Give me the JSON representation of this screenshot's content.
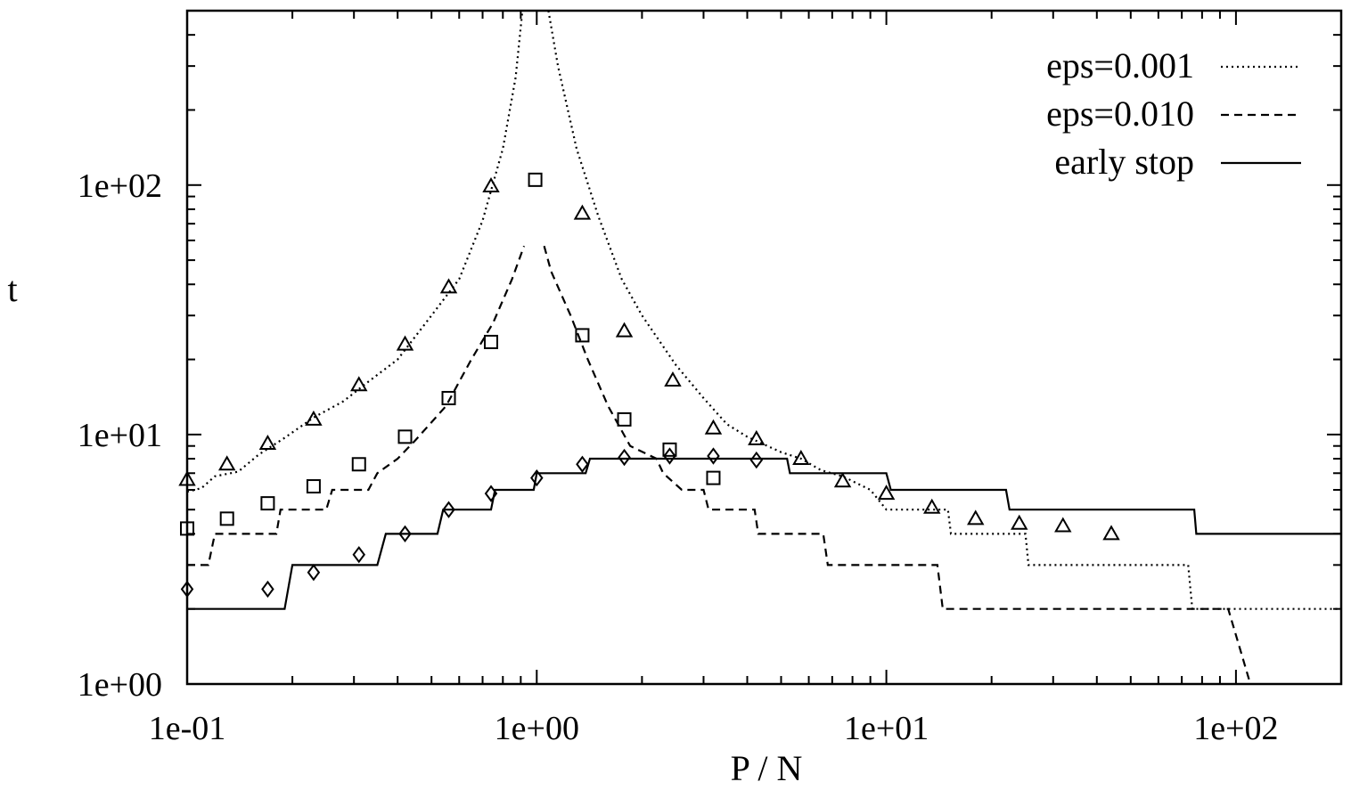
{
  "chart_data": {
    "type": "line",
    "title": "",
    "xlabel": "P / N",
    "ylabel": "t",
    "x_scale": "log",
    "y_scale": "log",
    "xlim": [
      0.1,
      200
    ],
    "ylim": [
      1,
      500
    ],
    "x_ticks": [
      {
        "value": 0.1,
        "label": "1e-01"
      },
      {
        "value": 1,
        "label": "1e+00"
      },
      {
        "value": 10,
        "label": "1e+01"
      },
      {
        "value": 100,
        "label": "1e+02"
      }
    ],
    "y_ticks": [
      {
        "value": 1,
        "label": "1e+00"
      },
      {
        "value": 10,
        "label": "1e+01"
      },
      {
        "value": 100,
        "label": "1e+02"
      }
    ],
    "grid": false,
    "legend_position": "top-right",
    "series": [
      {
        "name": "eps=0.001",
        "style": "dotted",
        "color": "#000000",
        "kind": "theory-curve",
        "left_branch": [
          [
            0.1,
            5.9
          ],
          [
            0.11,
            6.1
          ],
          [
            0.12,
            6.8
          ],
          [
            0.14,
            7.1
          ],
          [
            0.16,
            8.3
          ],
          [
            0.19,
            9.7
          ],
          [
            0.23,
            11.7
          ],
          [
            0.28,
            13.6
          ],
          [
            0.33,
            16.3
          ],
          [
            0.4,
            20
          ],
          [
            0.5,
            30
          ],
          [
            0.6,
            42
          ],
          [
            0.7,
            72
          ],
          [
            0.8,
            140
          ],
          [
            0.87,
            270
          ],
          [
            0.91,
            500
          ]
        ],
        "right_branch": [
          [
            1.08,
            500
          ],
          [
            1.15,
            300
          ],
          [
            1.3,
            140
          ],
          [
            1.5,
            75
          ],
          [
            1.75,
            42
          ],
          [
            2,
            30
          ],
          [
            2.5,
            19
          ],
          [
            3,
            14
          ],
          [
            3.5,
            11
          ],
          [
            4,
            9.8
          ],
          [
            5,
            8.5
          ],
          [
            5.7,
            8.0
          ],
          [
            6.5,
            7.2
          ],
          [
            7.5,
            6.8
          ],
          [
            9,
            6.0
          ],
          [
            10,
            5.0
          ],
          [
            15,
            5.0
          ],
          [
            15.3,
            4.0
          ],
          [
            25,
            4.0
          ],
          [
            25.5,
            3.0
          ],
          [
            73,
            3.0
          ],
          [
            75,
            2.0
          ],
          [
            200,
            2.0
          ]
        ]
      },
      {
        "name": "eps=0.010",
        "style": "dashed",
        "color": "#000000",
        "kind": "theory-curve",
        "left_branch": [
          [
            0.1,
            3.0
          ],
          [
            0.115,
            3.0
          ],
          [
            0.12,
            4.0
          ],
          [
            0.18,
            4.0
          ],
          [
            0.185,
            5.0
          ],
          [
            0.25,
            5.0
          ],
          [
            0.26,
            6.0
          ],
          [
            0.33,
            6.0
          ],
          [
            0.35,
            7.0
          ],
          [
            0.4,
            8.0
          ],
          [
            0.45,
            9.5
          ],
          [
            0.55,
            13
          ],
          [
            0.65,
            20
          ],
          [
            0.75,
            28
          ],
          [
            0.85,
            42
          ],
          [
            0.92,
            57
          ]
        ],
        "right_branch": [
          [
            1.05,
            57
          ],
          [
            1.1,
            45
          ],
          [
            1.25,
            30
          ],
          [
            1.4,
            20
          ],
          [
            1.6,
            13
          ],
          [
            1.85,
            9.0
          ],
          [
            2.2,
            8.0
          ],
          [
            2.3,
            7.0
          ],
          [
            2.6,
            6.0
          ],
          [
            3,
            6.0
          ],
          [
            3.1,
            5.0
          ],
          [
            4.2,
            5.0
          ],
          [
            4.3,
            4.0
          ],
          [
            6.6,
            4.0
          ],
          [
            6.8,
            3.0
          ],
          [
            14,
            3.0
          ],
          [
            14.5,
            2.0
          ],
          [
            95,
            2.0
          ],
          [
            110,
            1.0
          ]
        ]
      },
      {
        "name": "early stop",
        "style": "solid",
        "color": "#000000",
        "kind": "theory-curve",
        "points": [
          [
            0.1,
            2.0
          ],
          [
            0.19,
            2.0
          ],
          [
            0.2,
            3.0
          ],
          [
            0.35,
            3.0
          ],
          [
            0.37,
            4.0
          ],
          [
            0.52,
            4.0
          ],
          [
            0.54,
            5.0
          ],
          [
            0.74,
            5.0
          ],
          [
            0.76,
            6.0
          ],
          [
            0.98,
            6.0
          ],
          [
            1.0,
            7.0
          ],
          [
            1.38,
            7.0
          ],
          [
            1.42,
            8.0
          ],
          [
            5.2,
            8.0
          ],
          [
            5.3,
            7.0
          ],
          [
            10,
            7.0
          ],
          [
            10.3,
            6.0
          ],
          [
            22,
            6.0
          ],
          [
            22.5,
            5.0
          ],
          [
            76,
            5.0
          ],
          [
            77,
            4.0
          ],
          [
            200,
            4.0
          ]
        ]
      },
      {
        "name": "",
        "kind": "simulation-markers",
        "marker": "triangle",
        "points": [
          [
            0.1,
            6.6
          ],
          [
            0.13,
            7.6
          ],
          [
            0.17,
            9.2
          ],
          [
            0.23,
            11.5
          ],
          [
            0.31,
            15.8
          ],
          [
            0.42,
            23
          ],
          [
            0.56,
            39
          ],
          [
            0.74,
            99
          ],
          [
            1.35,
            77
          ],
          [
            1.78,
            26
          ],
          [
            2.45,
            16.5
          ],
          [
            3.2,
            10.6
          ],
          [
            4.25,
            9.6
          ],
          [
            5.7,
            8.0
          ],
          [
            7.5,
            6.5
          ],
          [
            10,
            5.8
          ],
          [
            13.5,
            5.1
          ],
          [
            18,
            4.6
          ],
          [
            24,
            4.4
          ],
          [
            32,
            4.3
          ],
          [
            44,
            4.0
          ]
        ]
      },
      {
        "name": "",
        "kind": "simulation-markers",
        "marker": "square",
        "points": [
          [
            0.1,
            4.2
          ],
          [
            0.13,
            4.6
          ],
          [
            0.17,
            5.3
          ],
          [
            0.23,
            6.2
          ],
          [
            0.31,
            7.6
          ],
          [
            0.42,
            9.8
          ],
          [
            0.56,
            14
          ],
          [
            0.74,
            23.5
          ],
          [
            0.99,
            105
          ],
          [
            1.35,
            25
          ],
          [
            1.78,
            11.5
          ],
          [
            2.4,
            8.7
          ],
          [
            3.2,
            6.7
          ]
        ]
      },
      {
        "name": "",
        "kind": "simulation-markers",
        "marker": "diamond",
        "points": [
          [
            0.1,
            2.4
          ],
          [
            0.17,
            2.4
          ],
          [
            0.23,
            2.8
          ],
          [
            0.31,
            3.3
          ],
          [
            0.42,
            4.0
          ],
          [
            0.56,
            5.0
          ],
          [
            0.74,
            5.8
          ],
          [
            1.0,
            6.7
          ],
          [
            1.35,
            7.6
          ],
          [
            1.78,
            8.1
          ],
          [
            2.4,
            8.2
          ],
          [
            3.2,
            8.2
          ],
          [
            4.25,
            7.9
          ]
        ]
      }
    ]
  }
}
